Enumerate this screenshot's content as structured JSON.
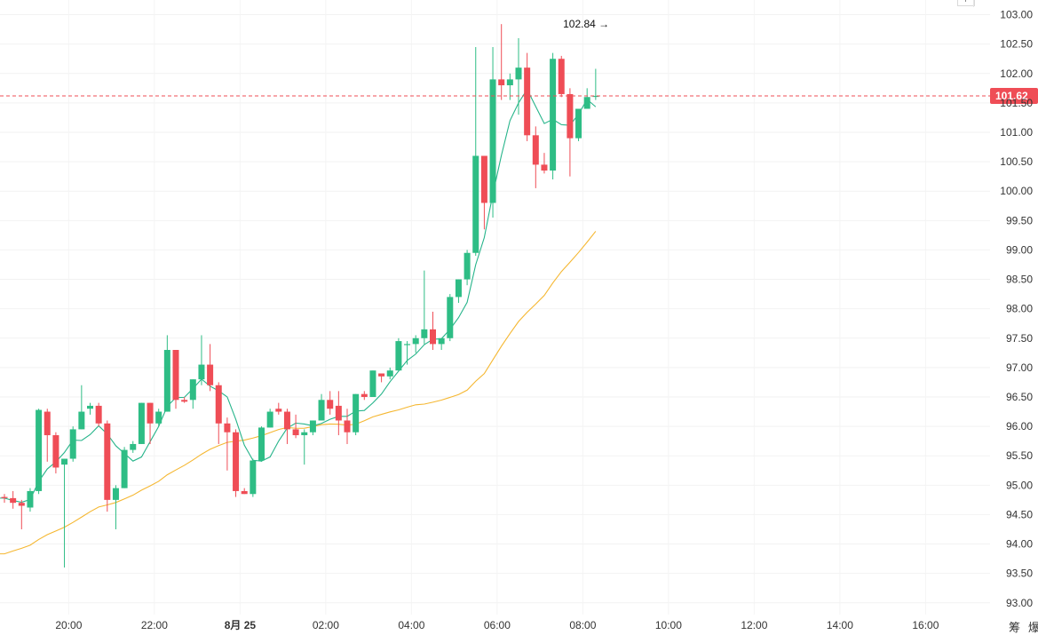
{
  "chart_data": {
    "type": "candlestick",
    "y_range": [
      92.8,
      103.25
    ],
    "y_ticks": [
      "103.00",
      "102.50",
      "102.00",
      "101.50",
      "101.00",
      "100.50",
      "100.00",
      "99.50",
      "99.00",
      "98.50",
      "98.00",
      "97.50",
      "97.00",
      "96.50",
      "96.00",
      "95.50",
      "95.00",
      "94.50",
      "94.00",
      "93.50",
      "93.00"
    ],
    "x_ticks": [
      {
        "label": "20:00",
        "index": 7.5,
        "bold": false
      },
      {
        "label": "22:00",
        "index": 17.5,
        "bold": false
      },
      {
        "label": "8月 25",
        "index": 27.5,
        "bold": true
      },
      {
        "label": "02:00",
        "index": 37.5,
        "bold": false
      },
      {
        "label": "04:00",
        "index": 47.5,
        "bold": false
      },
      {
        "label": "06:00",
        "index": 57.5,
        "bold": false
      },
      {
        "label": "08:00",
        "index": 67.5,
        "bold": false
      },
      {
        "label": "10:00",
        "index": 77.5,
        "bold": false
      },
      {
        "label": "12:00",
        "index": 87.5,
        "bold": false
      },
      {
        "label": "14:00",
        "index": 97.5,
        "bold": false
      },
      {
        "label": "16:00",
        "index": 107.5,
        "bold": false
      }
    ],
    "current_price": 101.62,
    "current_price_label": "101.62",
    "high_marker": {
      "index": 71,
      "value": 102.84,
      "label": "102.84 →"
    },
    "candles": [
      [
        94.8,
        94.85,
        94.7,
        94.78
      ],
      [
        94.78,
        94.9,
        94.6,
        94.7
      ],
      [
        94.7,
        94.75,
        94.25,
        94.65
      ],
      [
        94.62,
        94.95,
        94.55,
        94.9
      ],
      [
        94.9,
        96.3,
        94.85,
        96.28
      ],
      [
        96.25,
        96.3,
        95.4,
        95.85
      ],
      [
        95.85,
        95.9,
        95.2,
        95.3
      ],
      [
        95.35,
        95.45,
        93.6,
        95.45
      ],
      [
        95.45,
        96.0,
        95.4,
        95.95
      ],
      [
        95.95,
        96.7,
        95.95,
        96.25
      ],
      [
        96.3,
        96.4,
        96.2,
        96.35
      ],
      [
        96.35,
        96.4,
        96.0,
        96.05
      ],
      [
        96.05,
        96.1,
        94.55,
        94.75
      ],
      [
        94.75,
        95.0,
        94.25,
        94.95
      ],
      [
        94.95,
        95.65,
        94.95,
        95.6
      ],
      [
        95.6,
        95.75,
        95.55,
        95.7
      ],
      [
        95.7,
        96.4,
        95.7,
        96.4
      ],
      [
        96.4,
        96.4,
        95.7,
        96.05
      ],
      [
        96.05,
        96.3,
        96.0,
        96.25
      ],
      [
        96.25,
        97.55,
        96.25,
        97.3
      ],
      [
        97.3,
        97.3,
        96.3,
        96.45
      ],
      [
        96.45,
        96.5,
        96.4,
        96.42
      ],
      [
        96.45,
        96.8,
        96.3,
        96.8
      ],
      [
        96.8,
        97.55,
        96.7,
        97.05
      ],
      [
        97.05,
        97.4,
        96.6,
        96.7
      ],
      [
        96.7,
        96.75,
        95.7,
        96.05
      ],
      [
        96.05,
        96.15,
        95.25,
        95.9
      ],
      [
        95.9,
        95.95,
        94.8,
        94.9
      ],
      [
        94.9,
        94.95,
        94.85,
        94.85
      ],
      [
        94.85,
        95.45,
        94.8,
        95.42
      ],
      [
        95.42,
        96.0,
        95.4,
        95.98
      ],
      [
        95.98,
        96.3,
        95.98,
        96.25
      ],
      [
        96.3,
        96.4,
        96.2,
        96.25
      ],
      [
        96.25,
        96.3,
        95.7,
        95.95
      ],
      [
        95.95,
        96.2,
        95.8,
        95.85
      ],
      [
        95.85,
        95.95,
        95.35,
        95.9
      ],
      [
        95.9,
        96.1,
        95.85,
        96.1
      ],
      [
        96.1,
        96.55,
        96.1,
        96.45
      ],
      [
        96.45,
        96.6,
        96.2,
        96.3
      ],
      [
        96.35,
        96.6,
        95.85,
        96.1
      ],
      [
        96.1,
        96.3,
        95.7,
        95.9
      ],
      [
        95.9,
        96.55,
        95.85,
        96.55
      ],
      [
        96.55,
        96.6,
        96.45,
        96.5
      ],
      [
        96.5,
        96.95,
        96.5,
        96.95
      ],
      [
        96.9,
        96.9,
        96.75,
        96.85
      ],
      [
        96.85,
        97.0,
        96.8,
        96.95
      ],
      [
        96.95,
        97.5,
        96.95,
        97.45
      ],
      [
        97.4,
        97.45,
        97.05,
        97.4
      ],
      [
        97.4,
        97.55,
        97.25,
        97.5
      ],
      [
        97.5,
        98.65,
        97.4,
        97.65
      ],
      [
        97.65,
        97.95,
        97.3,
        97.4
      ],
      [
        97.4,
        97.5,
        97.3,
        97.5
      ],
      [
        97.5,
        98.25,
        97.45,
        98.2
      ],
      [
        98.2,
        98.5,
        98.1,
        98.5
      ],
      [
        98.5,
        99.0,
        98.4,
        98.95
      ],
      [
        98.95,
        102.45,
        98.9,
        100.6
      ],
      [
        100.6,
        100.6,
        99.35,
        99.8
      ],
      [
        99.8,
        102.45,
        99.55,
        101.9
      ],
      [
        101.9,
        102.84,
        101.55,
        101.8
      ],
      [
        101.8,
        102.0,
        101.55,
        101.9
      ],
      [
        101.9,
        102.6,
        101.3,
        102.1
      ],
      [
        102.1,
        102.35,
        100.85,
        100.95
      ],
      [
        100.95,
        101.1,
        100.05,
        100.45
      ],
      [
        100.45,
        100.65,
        100.3,
        100.35
      ],
      [
        100.35,
        102.35,
        100.2,
        102.25
      ],
      [
        102.25,
        102.3,
        101.6,
        101.65
      ],
      [
        101.65,
        101.75,
        100.25,
        100.9
      ],
      [
        100.9,
        101.4,
        100.85,
        101.4
      ],
      [
        101.4,
        101.75,
        101.4,
        101.6
      ],
      [
        101.62,
        102.08,
        101.55,
        101.62
      ]
    ],
    "ma_fast_color": "#26b48a",
    "ma_slow_color": "#f5b731",
    "up_color": "#2ebd85",
    "down_color": "#ef4d56"
  },
  "footer_labels": [
    "筹",
    "爆"
  ]
}
